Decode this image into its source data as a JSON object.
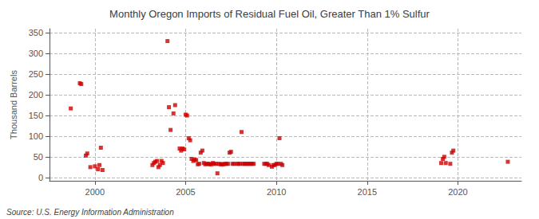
{
  "chart_data": {
    "type": "scatter",
    "title": "Monthly Oregon Imports of Residual Fuel Oil, Greater Than 1% Sulfur",
    "ylabel": "Thousand Barrels",
    "annotations": [
      "Source: U.S. Energy Information Administration"
    ],
    "color": "#cc0000",
    "marker": "square",
    "grid": true,
    "xlim": [
      1997.5,
      2023.5
    ],
    "ylim": [
      -8,
      360
    ],
    "xticks": [
      2000,
      2005,
      2010,
      2015,
      2020
    ],
    "yticks": [
      0,
      50,
      100,
      150,
      200,
      250,
      300,
      350
    ],
    "x": [
      1998.67,
      1999.17,
      1999.25,
      1999.5,
      1999.58,
      1999.75,
      2000.0,
      2000.17,
      2000.25,
      2000.33,
      2000.42,
      2003.17,
      2003.25,
      2003.33,
      2003.42,
      2003.5,
      2003.58,
      2003.67,
      2003.75,
      2004.0,
      2004.08,
      2004.17,
      2004.33,
      2004.42,
      2004.67,
      2004.75,
      2004.83,
      2004.92,
      2005.0,
      2005.08,
      2005.17,
      2005.25,
      2005.33,
      2005.42,
      2005.5,
      2005.58,
      2005.67,
      2005.75,
      2005.83,
      2005.92,
      2006.0,
      2006.08,
      2006.17,
      2006.25,
      2006.33,
      2006.42,
      2006.5,
      2006.58,
      2006.67,
      2006.75,
      2006.83,
      2006.92,
      2007.0,
      2007.08,
      2007.17,
      2007.25,
      2007.33,
      2007.42,
      2007.5,
      2007.58,
      2007.67,
      2007.83,
      2007.92,
      2008.0,
      2008.08,
      2008.17,
      2008.25,
      2008.33,
      2008.42,
      2008.5,
      2008.58,
      2008.67,
      2008.75,
      2009.33,
      2009.42,
      2009.5,
      2009.58,
      2009.75,
      2009.83,
      2009.92,
      2010.0,
      2010.08,
      2010.17,
      2010.25,
      2010.33,
      2019.08,
      2019.17,
      2019.25,
      2019.33,
      2019.58,
      2019.67,
      2019.75,
      2022.75
    ],
    "values": [
      167,
      228,
      226,
      53,
      58,
      25,
      27,
      20,
      30,
      72,
      18,
      30,
      35,
      38,
      40,
      25,
      30,
      40,
      35,
      330,
      170,
      115,
      155,
      175,
      70,
      65,
      70,
      68,
      152,
      150,
      95,
      90,
      45,
      40,
      43,
      42,
      32,
      33,
      60,
      65,
      35,
      32,
      33,
      33,
      32,
      32,
      35,
      33,
      33,
      10,
      33,
      32,
      32,
      32,
      33,
      33,
      33,
      60,
      62,
      33,
      33,
      33,
      33,
      33,
      110,
      33,
      33,
      33,
      33,
      33,
      33,
      33,
      33,
      33,
      33,
      33,
      30,
      26,
      30,
      30,
      33,
      33,
      95,
      33,
      30,
      35,
      45,
      50,
      35,
      33,
      60,
      65,
      38
    ]
  }
}
